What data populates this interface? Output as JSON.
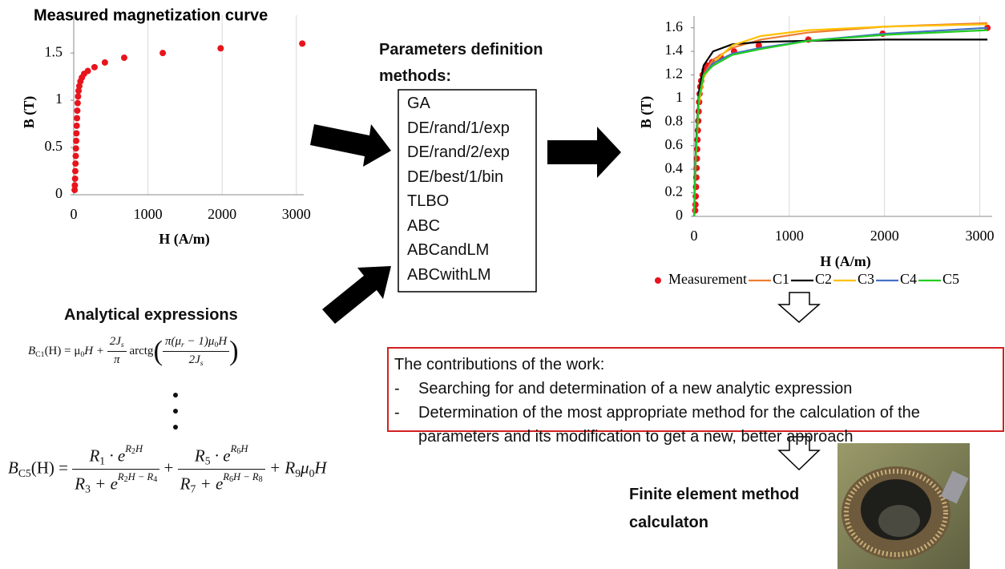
{
  "chart_data": [
    {
      "type": "scatter",
      "title": "Measured magnetization curve",
      "xlabel": "H (A/m)",
      "ylabel": "B (T)",
      "x": [
        12,
        15,
        18,
        21,
        24,
        27,
        30,
        33,
        36,
        40,
        44,
        48,
        53,
        58,
        65,
        75,
        90,
        110,
        140,
        190,
        280,
        420,
        680,
        1200,
        1980,
        3080
      ],
      "values": [
        0.05,
        0.1,
        0.17,
        0.25,
        0.33,
        0.41,
        0.49,
        0.57,
        0.65,
        0.73,
        0.81,
        0.89,
        0.97,
        1.04,
        1.1,
        1.15,
        1.2,
        1.24,
        1.28,
        1.31,
        1.35,
        1.4,
        1.45,
        1.5,
        1.55,
        1.6
      ],
      "color": "#e8141c",
      "xlim": [
        0,
        3100
      ],
      "ylim": [
        0,
        1.9
      ],
      "xticks": [
        0,
        1000,
        2000,
        3000
      ],
      "yticks": [
        0,
        0.5,
        1,
        1.5
      ],
      "grid": "x"
    },
    {
      "type": "line",
      "xlabel": "H (A/m)",
      "ylabel": "B (T)",
      "xlim": [
        0,
        3130
      ],
      "ylim": [
        0,
        1.7
      ],
      "xticks": [
        0,
        1000,
        2000,
        3000
      ],
      "yticks": [
        0,
        0.2,
        0.4,
        0.6,
        0.8,
        1,
        1.2,
        1.4,
        1.6
      ],
      "grid": "x",
      "legend": "bottom",
      "series": [
        {
          "name": "Measurement",
          "color": "#e8141c",
          "style": "markers",
          "x": [
            12,
            15,
            18,
            21,
            24,
            27,
            30,
            33,
            36,
            40,
            44,
            48,
            53,
            58,
            65,
            75,
            90,
            110,
            140,
            190,
            280,
            420,
            680,
            1200,
            1980,
            3080
          ],
          "values": [
            0.05,
            0.1,
            0.17,
            0.25,
            0.33,
            0.41,
            0.49,
            0.57,
            0.65,
            0.73,
            0.81,
            0.89,
            0.97,
            1.04,
            1.1,
            1.15,
            1.2,
            1.24,
            1.28,
            1.31,
            1.35,
            1.4,
            1.45,
            1.5,
            1.55,
            1.6
          ]
        },
        {
          "name": "C1",
          "color": "#ed7d31",
          "style": "line",
          "x": [
            0,
            20,
            50,
            100,
            200,
            400,
            700,
            1200,
            2000,
            3080
          ],
          "values": [
            0,
            0.55,
            1.0,
            1.2,
            1.33,
            1.43,
            1.5,
            1.56,
            1.61,
            1.64
          ]
        },
        {
          "name": "C2",
          "color": "#000000",
          "style": "line",
          "x": [
            0,
            20,
            50,
            100,
            200,
            400,
            700,
            1200,
            2000,
            3080
          ],
          "values": [
            0,
            0.6,
            1.05,
            1.28,
            1.4,
            1.46,
            1.48,
            1.49,
            1.5,
            1.5
          ]
        },
        {
          "name": "C3",
          "color": "#ffc000",
          "style": "line",
          "x": [
            0,
            20,
            50,
            100,
            200,
            400,
            700,
            1200,
            2000,
            3080
          ],
          "values": [
            0,
            0.5,
            0.95,
            1.18,
            1.3,
            1.45,
            1.53,
            1.58,
            1.61,
            1.63
          ]
        },
        {
          "name": "C4",
          "color": "#4472c4",
          "style": "line",
          "x": [
            0,
            20,
            50,
            100,
            200,
            400,
            700,
            1200,
            2000,
            3080
          ],
          "values": [
            0,
            0.55,
            1.0,
            1.2,
            1.3,
            1.38,
            1.43,
            1.49,
            1.55,
            1.6
          ]
        },
        {
          "name": "C5",
          "color": "#22cc22",
          "style": "line",
          "x": [
            0,
            20,
            50,
            100,
            200,
            400,
            700,
            1200,
            2000,
            3080
          ],
          "values": [
            0,
            0.55,
            1.0,
            1.2,
            1.28,
            1.37,
            1.42,
            1.49,
            1.54,
            1.58
          ]
        }
      ]
    }
  ],
  "methods": {
    "title": "Parameters definition methods:",
    "items": [
      "GA",
      "DE/rand/1/exp",
      "DE/rand/2/exp",
      "DE/best/1/bin",
      "TLBO",
      "ABC",
      "ABCandLM",
      "ABCwithLM"
    ]
  },
  "analytical": {
    "title": "Analytical expressions",
    "formula_c1": [
      "B",
      "C1",
      "(H) = μ",
      "0",
      "H + ",
      "2J",
      "s",
      "π",
      " arctg",
      "(",
      "π(μ",
      "r",
      " − 1)μ",
      "0",
      "H",
      "2J",
      "s",
      ")"
    ],
    "formula_c5": [
      "B",
      "C5",
      "(H) = ",
      "R",
      "1",
      " · e",
      "R",
      "2",
      "H",
      "R",
      "3",
      " + e",
      "R",
      "2",
      "H − R",
      "4",
      " + ",
      "R",
      "5",
      " · e",
      "R",
      "6",
      "H",
      "R",
      "7",
      " + e",
      "R",
      "6",
      "H − R",
      "8",
      " + R",
      "9",
      "μ",
      "0",
      "H"
    ]
  },
  "contributions": {
    "heading": "The contributions of the work:",
    "bullets": [
      "-",
      "-"
    ],
    "items": [
      "Searching for and determination of a new analytic expression",
      "Determination of the most appropriate method for the calculation of the parameters and its modification to get a new, better approach"
    ]
  },
  "fem": {
    "label": "Finite element method calculaton"
  }
}
